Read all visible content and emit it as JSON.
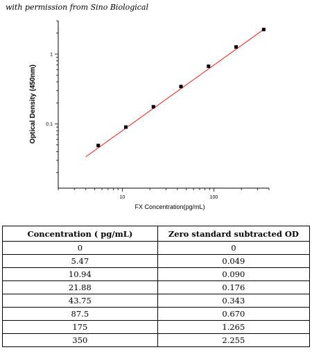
{
  "credit": "with permission from Sino Biological",
  "chart_data": {
    "type": "scatter",
    "xscale": "log",
    "yscale": "log",
    "xlabel": "FX  Concentration(pg/mL)",
    "ylabel": "Optical Density (450nm)",
    "xlim": [
      2,
      400
    ],
    "ylim": [
      0.012,
      3
    ],
    "xticks": [
      {
        "v": 10,
        "label": "10"
      },
      {
        "v": 100,
        "label": "100"
      }
    ],
    "yticks": [
      {
        "v": 0.1,
        "label": "0.1"
      },
      {
        "v": 1,
        "label": "1"
      }
    ],
    "points": [
      {
        "x": 5.47,
        "y": 0.049
      },
      {
        "x": 10.94,
        "y": 0.09
      },
      {
        "x": 21.88,
        "y": 0.176
      },
      {
        "x": 43.75,
        "y": 0.343
      },
      {
        "x": 87.5,
        "y": 0.67
      },
      {
        "x": 175,
        "y": 1.265
      },
      {
        "x": 350,
        "y": 2.255
      }
    ],
    "fit_line": {
      "x": [
        4,
        350
      ],
      "y": [
        0.0338,
        2.255
      ],
      "color": "#e8231f"
    },
    "marker_color": "#000000"
  },
  "table": {
    "headers": [
      "Concentration ( pg/mL)",
      "Zero standard subtracted OD"
    ],
    "rows": [
      [
        "0",
        "0"
      ],
      [
        "5.47",
        "0.049"
      ],
      [
        "10.94",
        "0.090"
      ],
      [
        "21.88",
        "0.176"
      ],
      [
        "43.75",
        "0.343"
      ],
      [
        "87.5",
        "0.670"
      ],
      [
        "175",
        "1.265"
      ],
      [
        "350",
        "2.255"
      ]
    ]
  }
}
